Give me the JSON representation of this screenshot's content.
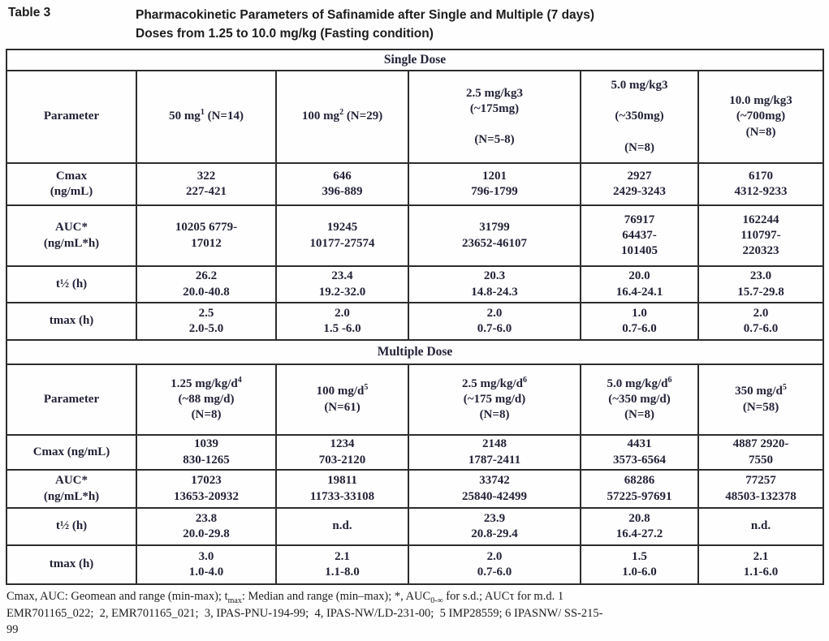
{
  "document": {
    "table_label": "Table 3",
    "title_line1": "Pharmacokinetic Parameters of Safinamide after Single and Multiple (7 days)",
    "title_line2": "Doses from 1.25 to 10.0 mg/kg (Fasting condition)"
  },
  "table": {
    "sections": [
      {
        "band": "Single Dose",
        "header": [
          [
            "Parameter"
          ],
          [
            "50 mg<sup>1</sup> (N=14)"
          ],
          [
            "100 mg<sup>2</sup> (N=29)"
          ],
          [
            "2.5 mg/kg3",
            "(~175mg)",
            "",
            "(N=5-8)"
          ],
          [
            "5.0 mg/kg3",
            "",
            "(~350mg)",
            "",
            "(N=8)"
          ],
          [
            "10.0 mg/kg3",
            "(~700mg)",
            "(N=8)"
          ]
        ],
        "rows": [
          [
            [
              "Cmax",
              "(ng/mL)"
            ],
            [
              "322",
              "227-421"
            ],
            [
              "646",
              "396-889"
            ],
            [
              "1201",
              "796-1799"
            ],
            [
              "2927",
              "2429-3243"
            ],
            [
              "6170",
              "4312-9233"
            ]
          ],
          [
            [
              "AUC*",
              "(ng/mL*h)"
            ],
            [
              "10205 6779-",
              "17012"
            ],
            [
              "19245",
              "10177-27574"
            ],
            [
              "31799",
              "23652-46107"
            ],
            [
              "76917",
              "64437-",
              "101405"
            ],
            [
              "162244",
              "110797-",
              "220323"
            ]
          ],
          [
            [
              "t½ (h)"
            ],
            [
              "26.2",
              "20.0-40.8"
            ],
            [
              "23.4",
              "19.2-32.0"
            ],
            [
              "20.3",
              "14.8-24.3"
            ],
            [
              "20.0",
              "16.4-24.1"
            ],
            [
              "23.0",
              "15.7-29.8"
            ]
          ],
          [
            [
              "tmax (h)"
            ],
            [
              "2.5",
              "2.0-5.0"
            ],
            [
              "2.0",
              "1.5 -6.0"
            ],
            [
              "2.0",
              "0.7-6.0"
            ],
            [
              "1.0",
              "0.7-6.0"
            ],
            [
              "2.0",
              "0.7-6.0"
            ]
          ]
        ]
      },
      {
        "band": "Multiple Dose",
        "header": [
          [
            "Parameter"
          ],
          [
            "1.25 mg/kg/d<sup>4</sup>",
            "(~88 mg/d)",
            "(N=8)"
          ],
          [
            "100 mg/d<sup>5</sup>",
            "(N=61)"
          ],
          [
            "2.5 mg/kg/d<sup>6</sup>",
            "(~175 mg/d)",
            "(N=8)"
          ],
          [
            "5.0 mg/kg/d<sup>6</sup>",
            "(~350 mg/d)",
            "(N=8)"
          ],
          [
            "350 mg/d<sup>5</sup>",
            "(N=58)"
          ]
        ],
        "rows": [
          [
            [
              "Cmax (ng/mL)"
            ],
            [
              "1039",
              "830-1265"
            ],
            [
              "1234",
              "703-2120"
            ],
            [
              "2148",
              "1787-2411"
            ],
            [
              "4431",
              "3573-6564"
            ],
            [
              "4887 2920-",
              "7550"
            ]
          ],
          [
            [
              "AUC*",
              "(ng/mL*h)"
            ],
            [
              "17023",
              "13653-20932"
            ],
            [
              "19811",
              "11733-33108"
            ],
            [
              "33742",
              "25840-42499"
            ],
            [
              "68286",
              "57225-97691"
            ],
            [
              "77257",
              "48503-132378"
            ]
          ],
          [
            [
              "t½ (h)"
            ],
            [
              "23.8",
              "20.0-29.8"
            ],
            [
              "n.d."
            ],
            [
              "23.9",
              "20.8-29.4"
            ],
            [
              "20.8",
              "16.4-27.2"
            ],
            [
              "n.d."
            ]
          ],
          [
            [
              "tmax (h)"
            ],
            [
              "3.0",
              "1.0-4.0"
            ],
            [
              "2.1",
              "1.1-8.0"
            ],
            [
              "2.0",
              "0.7-6.0"
            ],
            [
              "1.5",
              "1.0-6.0"
            ],
            [
              "2.1",
              "1.1-6.0"
            ]
          ]
        ]
      }
    ]
  },
  "footnotes": [
    "Cmax, AUC: Geomean and range (min-max); t<sub>max</sub>: Median and range (min–max); *, AUC<sub>0-∞</sub> for s.d.; AUCτ for m.d. 1",
    "EMR701165_022;&nbsp; 2, EMR701165_021;&nbsp; 3, IPAS-PNU-194-99;&nbsp; 4, IPAS-NW/LD-231-00;&nbsp; 5 IMP28559; 6 IPASNW/ SS-215-",
    "99"
  ]
}
